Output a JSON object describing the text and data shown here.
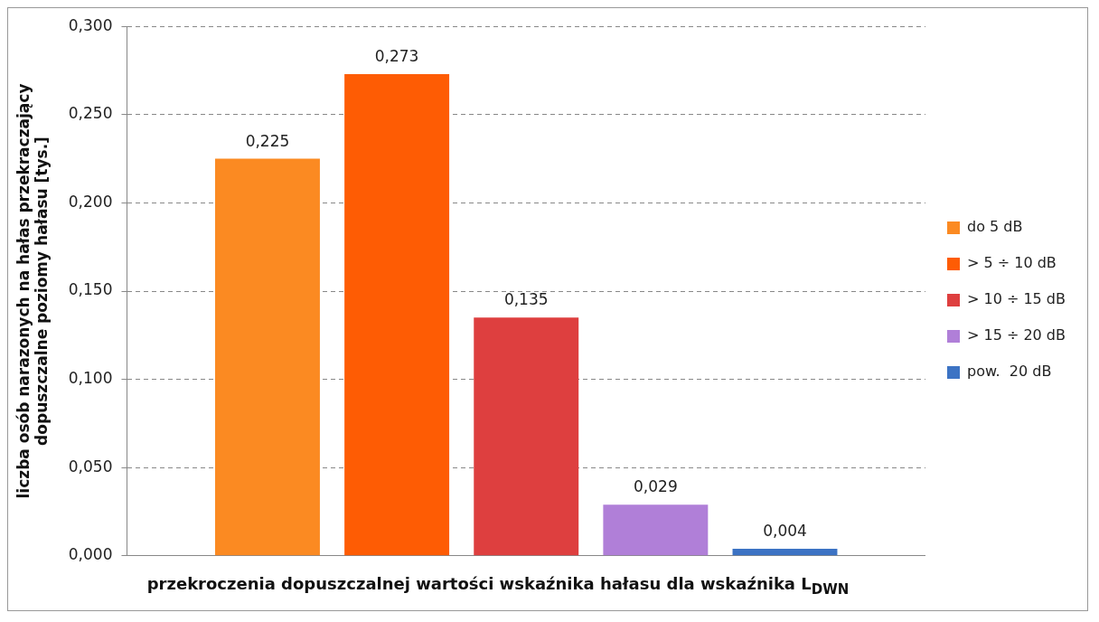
{
  "chart_data": {
    "type": "bar",
    "ylabel": "liczba osób narazonych na hałas przekraczający\ndopuszczalne poziomy hałasu [tys.]",
    "xlabel": "przekroczenia dopuszczalnej wartości wskaźnika hałasu dla wskaźnika L$_{DWN}$",
    "categories": [
      null
    ],
    "series": [
      {
        "name": "do 5 dB",
        "color": "#fb8a22",
        "values": [
          0.225
        ],
        "value_labels": [
          "0,225"
        ]
      },
      {
        "name": "> 5 ÷ 10 dB",
        "color": "#fe5c04",
        "values": [
          0.273
        ],
        "value_labels": [
          "0,273"
        ]
      },
      {
        "name": "> 10 ÷ 15 dB",
        "color": "#de3f3f",
        "values": [
          0.135
        ],
        "value_labels": [
          "0,135"
        ]
      },
      {
        "name": "> 15 ÷ 20 dB",
        "color": "#b07fd8",
        "values": [
          0.029
        ],
        "value_labels": [
          "0,029"
        ]
      },
      {
        "name": "pow.  20 dB",
        "color": "#3c73c4",
        "values": [
          0.004
        ],
        "value_labels": [
          "0,004"
        ]
      }
    ],
    "ylim": [
      0,
      0.3
    ],
    "yticks": [
      {
        "value": 0,
        "label": "0,000"
      },
      {
        "value": 0.05,
        "label": "0,050"
      },
      {
        "value": 0.1,
        "label": "0,100"
      },
      {
        "value": 0.15,
        "label": "0,150"
      },
      {
        "value": 0.2,
        "label": "0,200"
      },
      {
        "value": 0.25,
        "label": "0,250"
      },
      {
        "value": 0.3,
        "label": "0,300"
      }
    ],
    "grid": "y",
    "legend": "right"
  }
}
